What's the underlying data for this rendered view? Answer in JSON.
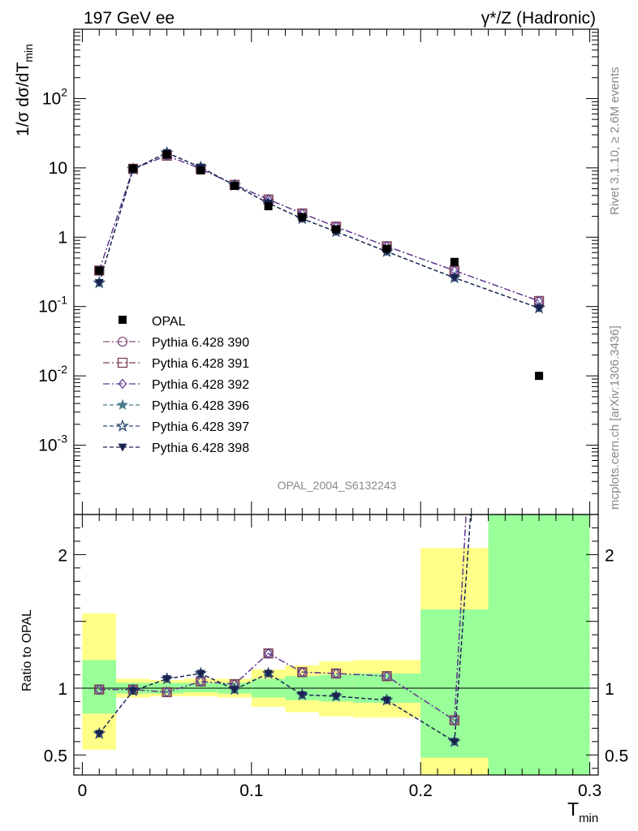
{
  "header": {
    "left": "197 GeV ee",
    "right": "γ*/Z (Hadronic)"
  },
  "side_labels": {
    "rivet": "Rivet 3.1.10, ≥ 2.6M events",
    "mcplots": "mcplots.cern.ch [arXiv:1306.3436]"
  },
  "analysis_tag": "OPAL_2004_S6132243",
  "chart_data": {
    "type": "line",
    "main_panel": {
      "ylabel_parts": [
        "1/σ dσ/dT",
        "min"
      ],
      "yscale": "log",
      "ylim": [
        0.0001,
        1000
      ],
      "ytick_labels": [
        {
          "base": "10",
          "exp": "-3",
          "value": 0.001
        },
        {
          "base": "10",
          "exp": "-2",
          "value": 0.01
        },
        {
          "base": "10",
          "exp": "-1",
          "value": 0.1
        },
        {
          "base": "1",
          "exp": "",
          "value": 1
        },
        {
          "base": "10",
          "exp": "",
          "value": 10
        },
        {
          "base": "10",
          "exp": "2",
          "value": 100
        }
      ]
    },
    "ratio_panel": {
      "ylabel": "Ratio to OPAL",
      "ylim": [
        0.35,
        2.3
      ],
      "ytick_labels": [
        {
          "label": "0.5",
          "value": 0.5
        },
        {
          "label": "1",
          "value": 1
        },
        {
          "label": "2",
          "value": 2
        }
      ]
    },
    "x": {
      "label_parts": [
        "T",
        "min"
      ],
      "lim": [
        -0.005,
        0.305
      ],
      "tick_labels": [
        {
          "label": "0",
          "value": 0
        },
        {
          "label": "0.1",
          "value": 0.1
        },
        {
          "label": "0.2",
          "value": 0.2
        },
        {
          "label": "0.3",
          "value": 0.3
        }
      ]
    },
    "data": {
      "name": "OPAL",
      "color": "#000000",
      "x": [
        0.01,
        0.03,
        0.05,
        0.07,
        0.09,
        0.11,
        0.13,
        0.15,
        0.18,
        0.22,
        0.27
      ],
      "y": [
        0.33,
        9.8,
        15.5,
        9.2,
        5.5,
        2.8,
        1.95,
        1.3,
        0.68,
        0.44,
        0.01
      ]
    },
    "bands": [
      {
        "x0": 0.0,
        "x1": 0.02,
        "yellow": [
          0.54,
          1.56
        ],
        "green": [
          0.81,
          1.21
        ]
      },
      {
        "x0": 0.02,
        "x1": 0.04,
        "yellow": [
          0.93,
          1.07
        ],
        "green": [
          0.96,
          1.04
        ]
      },
      {
        "x0": 0.04,
        "x1": 0.06,
        "yellow": [
          0.94,
          1.06
        ],
        "green": [
          0.96,
          1.04
        ]
      },
      {
        "x0": 0.06,
        "x1": 0.08,
        "yellow": [
          0.94,
          1.07
        ],
        "green": [
          0.97,
          1.04
        ]
      },
      {
        "x0": 0.08,
        "x1": 0.1,
        "yellow": [
          0.93,
          1.07
        ],
        "green": [
          0.96,
          1.04
        ]
      },
      {
        "x0": 0.1,
        "x1": 0.12,
        "yellow": [
          0.86,
          1.14
        ],
        "green": [
          0.93,
          1.07
        ]
      },
      {
        "x0": 0.12,
        "x1": 0.14,
        "yellow": [
          0.82,
          1.17
        ],
        "green": [
          0.91,
          1.09
        ]
      },
      {
        "x0": 0.14,
        "x1": 0.16,
        "yellow": [
          0.79,
          1.2
        ],
        "green": [
          0.9,
          1.1
        ]
      },
      {
        "x0": 0.16,
        "x1": 0.2,
        "yellow": [
          0.78,
          1.21
        ],
        "green": [
          0.89,
          1.11
        ]
      },
      {
        "x0": 0.2,
        "x1": 0.24,
        "yellow": [
          0.0,
          2.05
        ],
        "green": [
          0.48,
          1.59
        ]
      },
      {
        "x0": 0.24,
        "x1": 0.3,
        "yellow": [
          0.0,
          3.0
        ],
        "green": [
          0.0,
          3.0
        ]
      }
    ],
    "series": [
      {
        "name": "Pythia 6.428 390",
        "color": "#8a4f7d",
        "marker": "circle",
        "dash": "8,3,2,3",
        "y": [
          0.33,
          9.7,
          15.0,
          9.7,
          5.7,
          3.5,
          2.2,
          1.42,
          0.74,
          0.33,
          0.12
        ],
        "ratio": [
          0.99,
          0.99,
          0.97,
          1.05,
          1.03,
          1.26,
          1.12,
          1.11,
          1.09,
          0.76,
          12.0
        ]
      },
      {
        "name": "Pythia 6.428 391",
        "color": "#7a3f50",
        "marker": "square",
        "dash": "8,3,2,3",
        "y": [
          0.33,
          9.7,
          15.0,
          9.7,
          5.7,
          3.5,
          2.2,
          1.42,
          0.74,
          0.33,
          0.12
        ],
        "ratio": [
          0.99,
          0.99,
          0.97,
          1.05,
          1.03,
          1.26,
          1.12,
          1.11,
          1.09,
          0.76,
          12.0
        ]
      },
      {
        "name": "Pythia 6.428 392",
        "color": "#5e3c99",
        "marker": "diamond",
        "dash": "8,3,2,3",
        "y": [
          0.33,
          9.7,
          15.0,
          9.7,
          5.7,
          3.5,
          2.2,
          1.42,
          0.74,
          0.33,
          0.12
        ],
        "ratio": [
          0.99,
          0.99,
          0.97,
          1.05,
          1.03,
          1.26,
          1.12,
          1.11,
          1.09,
          0.76,
          12.0
        ]
      },
      {
        "name": "Pythia 6.428 396",
        "color": "#467a8a",
        "marker": "star",
        "dash": "5,3",
        "y": [
          0.22,
          9.6,
          16.5,
          10.2,
          5.6,
          3.1,
          1.85,
          1.2,
          0.62,
          0.26,
          0.095
        ],
        "ratio": [
          0.66,
          0.98,
          1.07,
          1.11,
          0.99,
          1.11,
          0.95,
          0.94,
          0.91,
          0.6,
          9.5
        ]
      },
      {
        "name": "Pythia 6.428 397",
        "color": "#2d4870",
        "marker": "star-open",
        "dash": "5,3",
        "y": [
          0.22,
          9.6,
          16.5,
          10.2,
          5.6,
          3.1,
          1.85,
          1.2,
          0.62,
          0.26,
          0.095
        ],
        "ratio": [
          0.66,
          0.98,
          1.07,
          1.11,
          0.99,
          1.11,
          0.95,
          0.94,
          0.91,
          0.6,
          9.5
        ]
      },
      {
        "name": "Pythia 6.428 398",
        "color": "#1a2450",
        "marker": "triangle-down",
        "dash": "5,3",
        "y": [
          0.22,
          9.6,
          16.5,
          10.2,
          5.6,
          3.1,
          1.85,
          1.2,
          0.62,
          0.26,
          0.095
        ],
        "ratio": [
          0.66,
          0.98,
          1.07,
          1.11,
          0.99,
          1.11,
          0.95,
          0.94,
          0.91,
          0.6,
          9.5
        ]
      }
    ]
  }
}
